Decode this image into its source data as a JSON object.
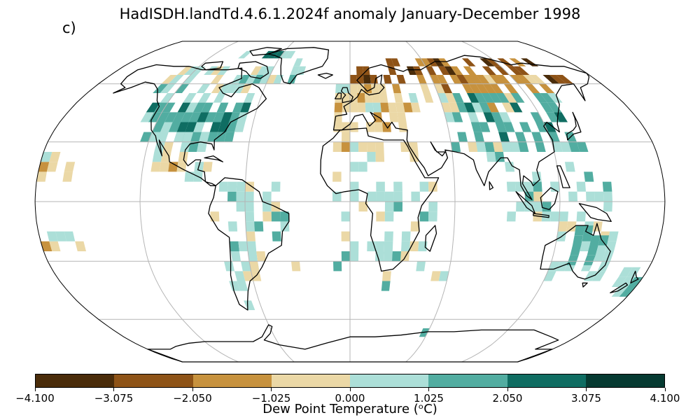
{
  "title": "HadISDH.landTd.4.6.1.2024f anomaly January-December 1998",
  "panel_label": "c)",
  "colorbar": {
    "label": "Dew Point Temperature (ᵒC)",
    "ticks": [
      "−4.100",
      "−3.075",
      "−2.050",
      "−1.025",
      "0.000",
      "1.025",
      "2.050",
      "3.075",
      "4.100"
    ],
    "colors": [
      "#4a2c0a",
      "#8e5317",
      "#c7923e",
      "#ebd8a6",
      "#acdfd8",
      "#52ada1",
      "#0f6d62",
      "#063a31"
    ]
  },
  "map": {
    "projection": "Robinson",
    "gridlines": true,
    "regions": [
      {
        "name": "north-america-north",
        "class": 4
      },
      {
        "name": "north-america-central",
        "class": 5
      },
      {
        "name": "north-america-east",
        "class": 6
      },
      {
        "name": "greenland-west",
        "class": 5
      },
      {
        "name": "central-america",
        "class": 3
      },
      {
        "name": "south-america",
        "class": 4
      },
      {
        "name": "europe",
        "class": 3
      },
      {
        "name": "scandinavia-siberia-north",
        "class": 1
      },
      {
        "name": "russia-mid",
        "class": 2
      },
      {
        "name": "central-asia",
        "class": 5
      },
      {
        "name": "east-asia",
        "class": 5
      },
      {
        "name": "south-asia",
        "class": 4
      },
      {
        "name": "africa",
        "class": 4
      },
      {
        "name": "middle-east",
        "class": 3
      },
      {
        "name": "australia",
        "class": 5
      },
      {
        "name": "new-zealand",
        "class": 4
      }
    ]
  }
}
